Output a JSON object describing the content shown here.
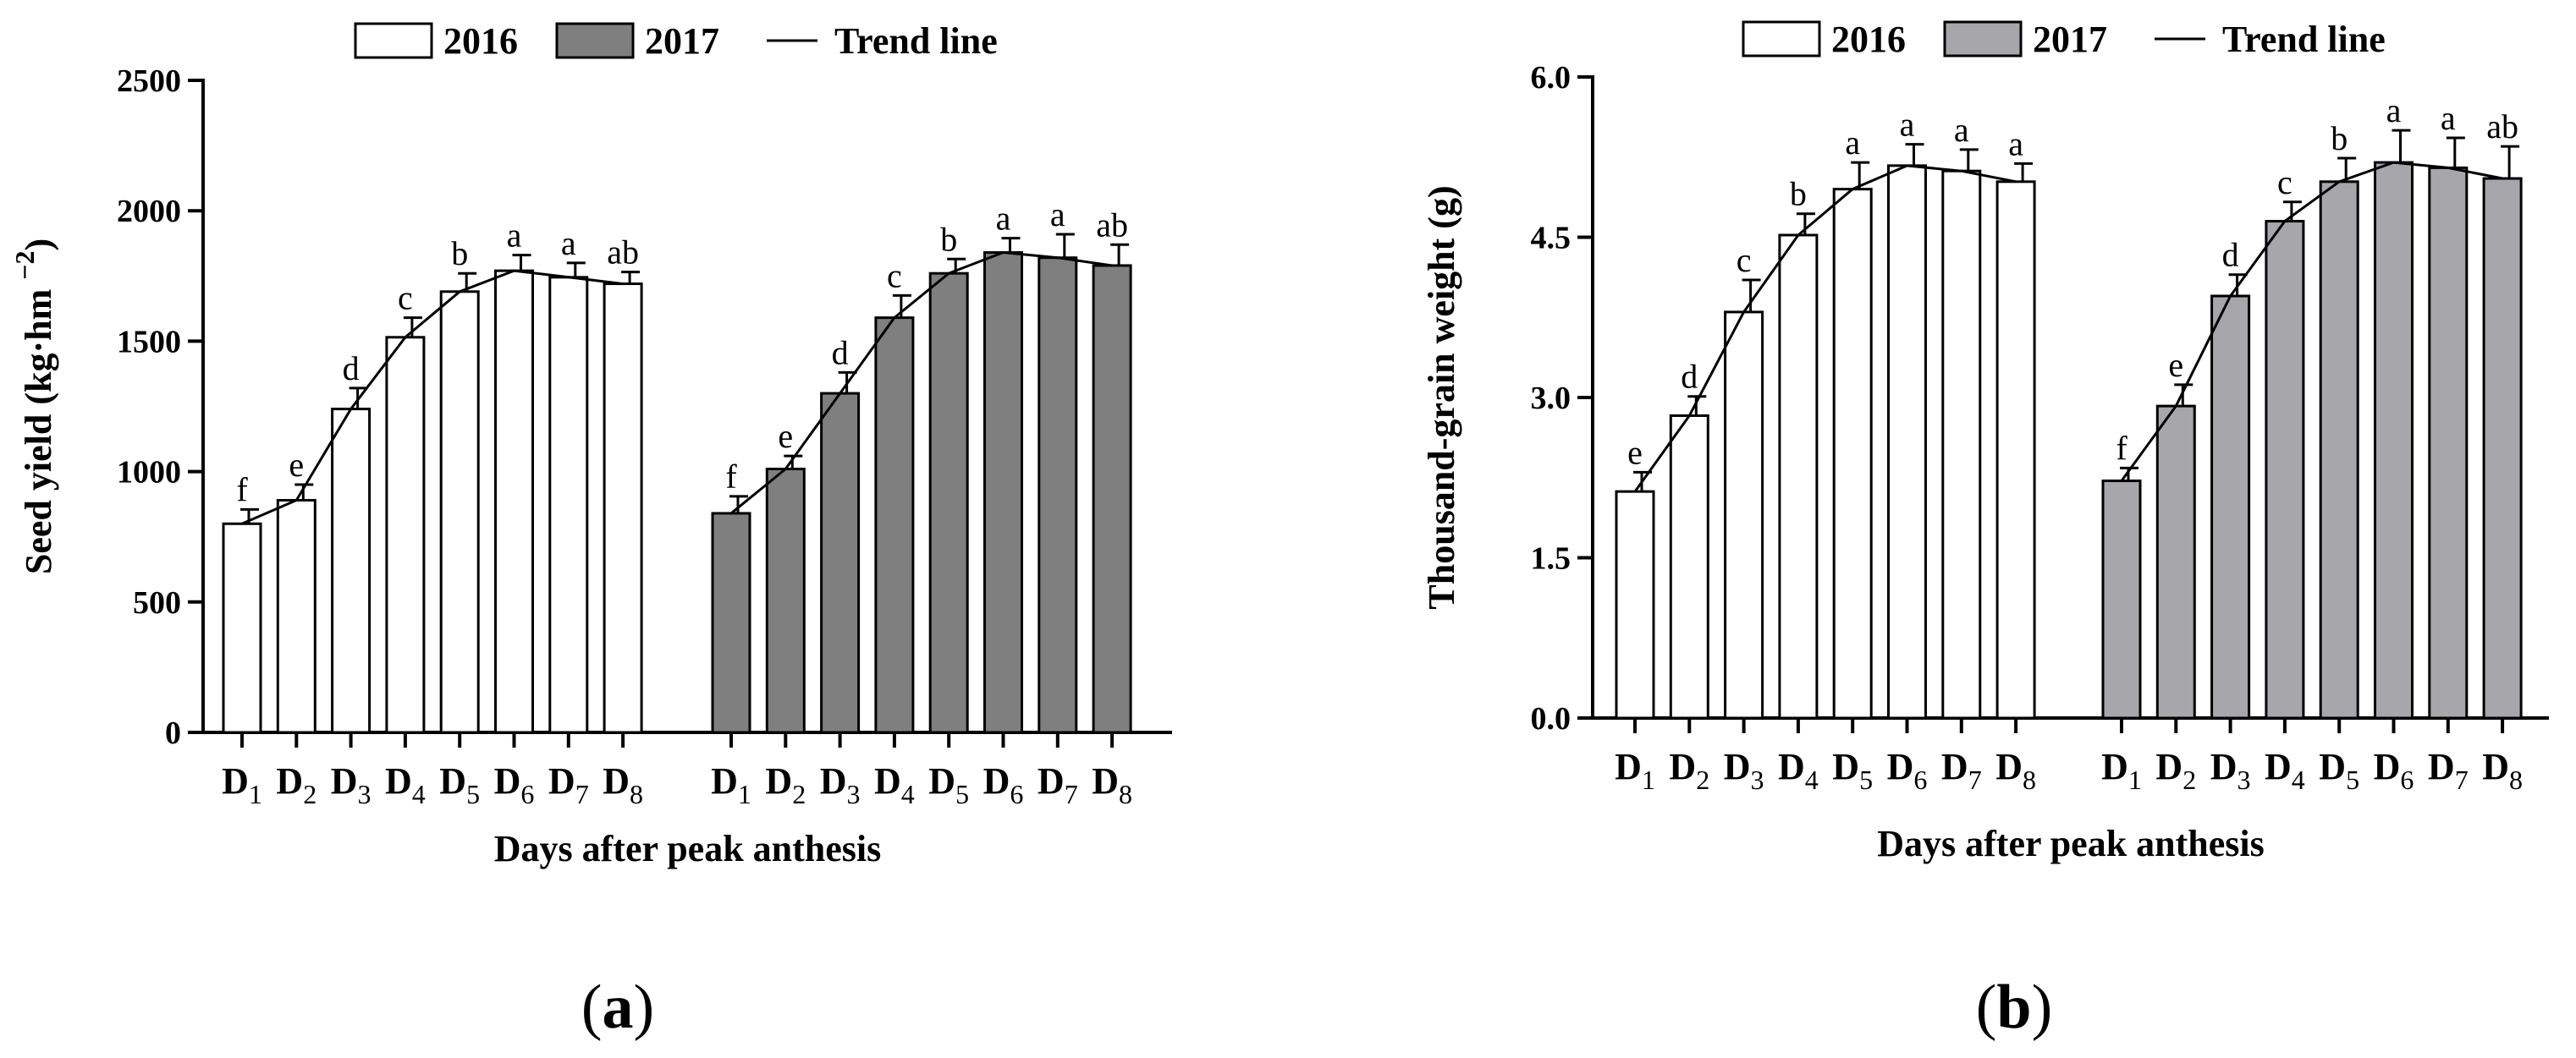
{
  "figure": {
    "panel_labels": [
      "a",
      "b"
    ]
  },
  "legend": {
    "items": [
      {
        "label": "2016",
        "kind": "open-bar"
      },
      {
        "label": "2017",
        "kind": "filled-bar"
      },
      {
        "label": "Trend line",
        "kind": "line"
      }
    ]
  },
  "colors": {
    "panel_a_2017": "#7f7f7f",
    "panel_b_2017": "#a6a6ab",
    "outline": "#000000",
    "bar_2016": "#ffffff"
  },
  "chart_data": [
    {
      "id": "a",
      "type": "bar",
      "title": "",
      "xlabel": "Days after peak anthesis",
      "ylabel": "Seed yield (kg·hm −2)",
      "ylim": [
        0,
        2500
      ],
      "yticks": [
        "0",
        "500",
        "1000",
        "1500",
        "2000",
        "2500"
      ],
      "categories": [
        "D1",
        "D2",
        "D3",
        "D4",
        "D5",
        "D6",
        "D7",
        "D8"
      ],
      "trend_line": true,
      "series": [
        {
          "name": "2016",
          "values": [
            800,
            890,
            1240,
            1515,
            1690,
            1770,
            1745,
            1720
          ],
          "errors": [
            55,
            60,
            80,
            75,
            70,
            60,
            55,
            45
          ],
          "letters": [
            "f",
            "e",
            "d",
            "c",
            "b",
            "a",
            "a",
            "ab"
          ]
        },
        {
          "name": "2017",
          "values": [
            840,
            1010,
            1300,
            1590,
            1760,
            1840,
            1820,
            1790
          ],
          "errors": [
            65,
            50,
            80,
            85,
            55,
            55,
            90,
            80
          ],
          "letters": [
            "f",
            "e",
            "d",
            "c",
            "b",
            "a",
            "a",
            "ab"
          ]
        }
      ]
    },
    {
      "id": "b",
      "type": "bar",
      "title": "",
      "xlabel": "Days after peak anthesis",
      "ylabel": "Thousand-grain weight (g)",
      "ylim": [
        0,
        6
      ],
      "yticks": [
        "0.0",
        "1.5",
        "3.0",
        "4.5",
        "6.0"
      ],
      "categories": [
        "D1",
        "D2",
        "D3",
        "D4",
        "D5",
        "D6",
        "D7",
        "D8"
      ],
      "trend_line": true,
      "series": [
        {
          "name": "2016",
          "values": [
            2.12,
            2.83,
            3.8,
            4.52,
            4.95,
            5.17,
            5.12,
            5.02
          ],
          "errors": [
            0.18,
            0.18,
            0.3,
            0.2,
            0.25,
            0.2,
            0.2,
            0.17
          ],
          "letters": [
            "e",
            "d",
            "c",
            "b",
            "a",
            "a",
            "a",
            "a"
          ]
        },
        {
          "name": "2017",
          "values": [
            2.22,
            2.92,
            3.95,
            4.65,
            5.02,
            5.2,
            5.15,
            5.05
          ],
          "errors": [
            0.12,
            0.2,
            0.2,
            0.18,
            0.22,
            0.3,
            0.28,
            0.3
          ],
          "letters": [
            "f",
            "e",
            "d",
            "c",
            "b",
            "a",
            "a",
            "ab"
          ]
        }
      ]
    }
  ]
}
